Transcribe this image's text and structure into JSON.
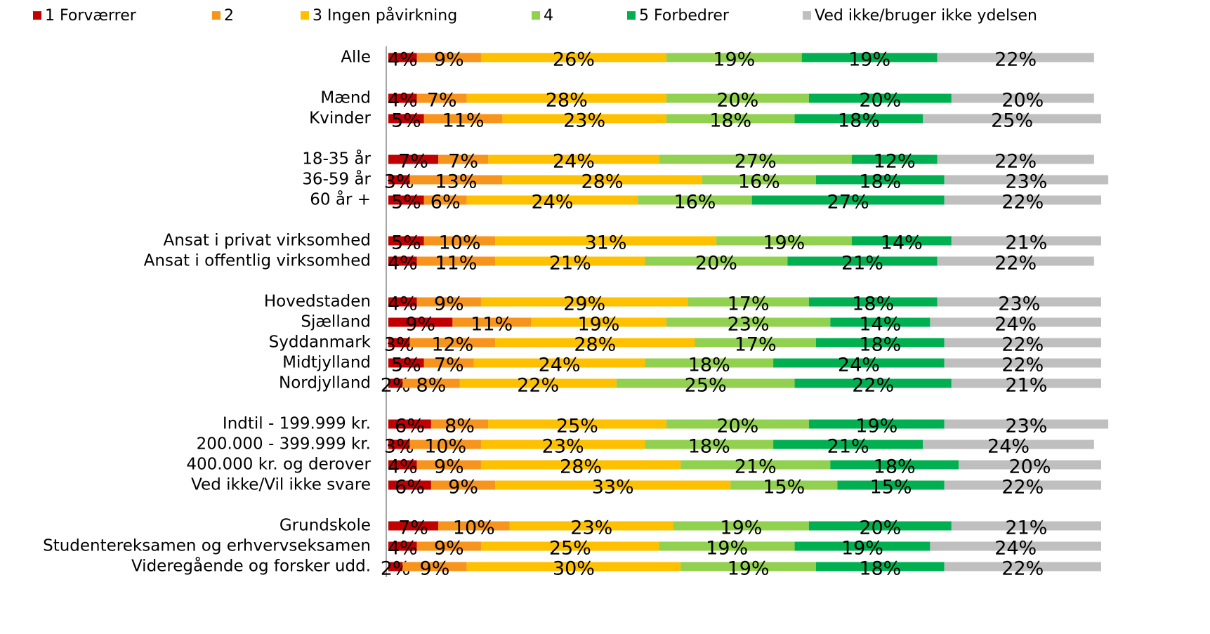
{
  "chart_data": {
    "type": "stacked_bar_horizontal",
    "categories": [
      "Alle",
      null,
      "Mænd",
      "Kvinder",
      null,
      "18-35 år",
      "36-59 år",
      "60 år +",
      null,
      "Ansat i privat virksomhed",
      "Ansat i offentlig virksomhed",
      null,
      "Hovedstaden",
      "Sjælland",
      "Syddanmark",
      "Midtjylland",
      "Nordjylland",
      null,
      "Indtil - 199.999 kr.",
      "200.000 - 399.999 kr.",
      "400.000 kr. og derover",
      "Ved ikke/Vil ikke svare",
      null,
      "Grundskole",
      "Studentereksamen og erhvervseksamen",
      "Videregående og forsker udd."
    ],
    "xlim": [
      0,
      100
    ],
    "legend": "top",
    "series": [
      {
        "name": "1 Forværrer",
        "color": "#c00000",
        "values": [
          4,
          null,
          4,
          5,
          null,
          7,
          3,
          5,
          null,
          5,
          4,
          null,
          4,
          9,
          3,
          5,
          2,
          null,
          6,
          3,
          4,
          6,
          null,
          7,
          4,
          2
        ],
        "value_labels": [
          "4%",
          null,
          "4%",
          "5%",
          null,
          "7%",
          "3%",
          "5%",
          null,
          "5%",
          "4%",
          null,
          "4%",
          "9%",
          "3%",
          "5%",
          "2%",
          null,
          "6%",
          "3%",
          "4%",
          "6%",
          null,
          "7%",
          "4%",
          "2%"
        ]
      },
      {
        "name": "2",
        "color": "#f7941d",
        "values": [
          9,
          null,
          7,
          11,
          null,
          7,
          13,
          6,
          null,
          10,
          11,
          null,
          9,
          11,
          12,
          7,
          8,
          null,
          8,
          10,
          9,
          9,
          null,
          10,
          9,
          9
        ],
        "value_labels": [
          "9%",
          null,
          "7%",
          "11%",
          null,
          "7%",
          "13%",
          "6%",
          null,
          "10%",
          "11%",
          null,
          "9%",
          "11%",
          "12%",
          "7%",
          "8%",
          null,
          "8%",
          "10%",
          "9%",
          "9%",
          null,
          "10%",
          "9%",
          "9%"
        ]
      },
      {
        "name": "3 Ingen påvirkning",
        "color": "#ffc000",
        "values": [
          26,
          null,
          28,
          23,
          null,
          24,
          28,
          24,
          null,
          31,
          21,
          null,
          29,
          19,
          28,
          24,
          22,
          null,
          25,
          23,
          28,
          33,
          null,
          23,
          25,
          30
        ],
        "value_labels": [
          "26%",
          null,
          "28%",
          "23%",
          null,
          "24%",
          "28%",
          "24%",
          null,
          "31%",
          "21%",
          null,
          "29%",
          "19%",
          "28%",
          "24%",
          "22%",
          null,
          "25%",
          "23%",
          "28%",
          "33%",
          null,
          "23%",
          "25%",
          "30%"
        ]
      },
      {
        "name": "4",
        "color": "#92d050",
        "values": [
          19,
          null,
          20,
          18,
          null,
          27,
          16,
          16,
          null,
          19,
          20,
          null,
          17,
          23,
          17,
          18,
          25,
          null,
          20,
          18,
          21,
          15,
          null,
          19,
          19,
          19
        ],
        "value_labels": [
          "19%",
          null,
          "20%",
          "18%",
          null,
          "27%",
          "16%",
          "16%",
          null,
          "19%",
          "20%",
          null,
          "17%",
          "23%",
          "17%",
          "18%",
          "25%",
          null,
          "20%",
          "18%",
          "21%",
          "15%",
          null,
          "19%",
          "19%",
          "19%"
        ]
      },
      {
        "name": "5 Forbedrer",
        "color": "#00b050",
        "values": [
          19,
          null,
          20,
          18,
          null,
          12,
          18,
          27,
          null,
          14,
          21,
          null,
          18,
          14,
          18,
          24,
          22,
          null,
          19,
          21,
          18,
          15,
          null,
          20,
          19,
          18
        ],
        "value_labels": [
          "19%",
          null,
          "20%",
          "18%",
          null,
          "12%",
          "18%",
          "27%",
          null,
          "14%",
          "21%",
          null,
          "18%",
          "14%",
          "18%",
          "24%",
          "22%",
          null,
          "19%",
          "21%",
          "18%",
          "15%",
          null,
          "20%",
          "19%",
          "18%"
        ]
      },
      {
        "name": "Ved ikke/bruger ikke ydelsen",
        "color": "#bfbfbf",
        "values": [
          22,
          null,
          20,
          25,
          null,
          22,
          23,
          22,
          null,
          21,
          22,
          null,
          23,
          24,
          22,
          22,
          21,
          null,
          23,
          24,
          20,
          22,
          null,
          21,
          24,
          22
        ],
        "value_labels": [
          "22%",
          null,
          "20%",
          "25%",
          null,
          "22%",
          "23%",
          "22%",
          null,
          "21%",
          "22%",
          null,
          "23%",
          "24%",
          "22%",
          "22%",
          "21%",
          null,
          "23%",
          "24%",
          "20%",
          "22%",
          null,
          "21%",
          "24%",
          "22%"
        ]
      }
    ]
  }
}
